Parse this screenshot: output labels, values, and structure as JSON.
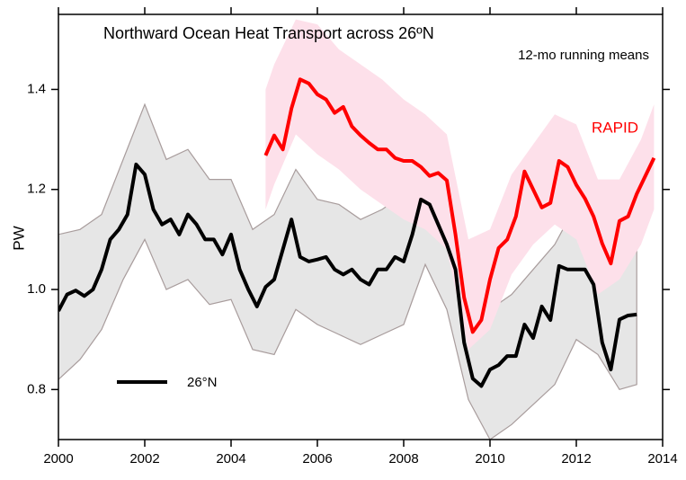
{
  "chart_data": {
    "type": "line",
    "title": "Northward Ocean Heat Transport across 26ºN",
    "subtitle": "12-mo running means",
    "y_label": "PW",
    "xlim": [
      2000,
      2014
    ],
    "xticks": [
      2000,
      2002,
      2004,
      2006,
      2008,
      2010,
      2012,
      2014
    ],
    "ylim": [
      0.7,
      1.55
    ],
    "yticks": [
      {
        "value": 0.8,
        "label": "0.8"
      },
      {
        "value": 1.0,
        "label": "1.0"
      },
      {
        "value": 1.2,
        "label": "1.2"
      },
      {
        "value": 1.4,
        "label": "1.4"
      }
    ],
    "series": [
      {
        "name": "26°N",
        "color": "#000000",
        "band_color": "#e6e6e6",
        "legend": true,
        "x": [
          2000.0,
          2000.2,
          2000.4,
          2000.6,
          2000.8,
          2001.0,
          2001.2,
          2001.4,
          2001.6,
          2001.8,
          2002.0,
          2002.2,
          2002.4,
          2002.6,
          2002.8,
          2003.0,
          2003.2,
          2003.4,
          2003.6,
          2003.8,
          2004.0,
          2004.2,
          2004.4,
          2004.6,
          2004.8,
          2005.0,
          2005.2,
          2005.4,
          2005.6,
          2005.8,
          2006.0,
          2006.2,
          2006.4,
          2006.6,
          2006.8,
          2007.0,
          2007.2,
          2007.4,
          2007.6,
          2007.8,
          2008.0,
          2008.2,
          2008.4,
          2008.6,
          2008.8,
          2009.0,
          2009.2,
          2009.4,
          2009.6,
          2009.8,
          2010.0,
          2010.2,
          2010.4,
          2010.6,
          2010.8,
          2011.0,
          2011.2,
          2011.4,
          2011.6,
          2011.8,
          2012.0,
          2012.2,
          2012.4,
          2012.6,
          2012.8,
          2013.0,
          2013.2,
          2013.4
        ],
        "values": [
          0.957,
          0.99,
          0.998,
          0.987,
          1.0,
          1.04,
          1.1,
          1.12,
          1.15,
          1.25,
          1.23,
          1.16,
          1.13,
          1.14,
          1.11,
          1.15,
          1.13,
          1.1,
          1.1,
          1.07,
          1.11,
          1.04,
          1.0,
          0.966,
          1.005,
          1.02,
          1.08,
          1.14,
          1.065,
          1.056,
          1.06,
          1.065,
          1.04,
          1.03,
          1.04,
          1.02,
          1.01,
          1.04,
          1.04,
          1.065,
          1.056,
          1.11,
          1.18,
          1.17,
          1.13,
          1.09,
          1.04,
          0.894,
          0.822,
          0.807,
          0.84,
          0.849,
          0.867,
          0.867,
          0.93,
          0.903,
          0.966,
          0.939,
          1.047,
          1.04,
          1.04,
          1.04,
          1.01,
          0.894,
          0.84,
          0.94,
          0.948,
          0.95
        ],
        "band_x": [
          2000,
          2000.5,
          2001,
          2001.5,
          2002,
          2002.5,
          2003,
          2003.5,
          2004,
          2004.5,
          2005,
          2005.5,
          2006,
          2006.5,
          2007,
          2007.5,
          2008,
          2008.5,
          2009,
          2009.5,
          2010,
          2010.5,
          2011,
          2011.5,
          2012,
          2012.5,
          2013,
          2013.4
        ],
        "band_upper": [
          1.11,
          1.12,
          1.15,
          1.26,
          1.37,
          1.26,
          1.28,
          1.22,
          1.22,
          1.12,
          1.15,
          1.24,
          1.18,
          1.17,
          1.14,
          1.16,
          1.19,
          1.29,
          1.22,
          1.08,
          0.96,
          0.99,
          1.04,
          1.09,
          1.17,
          1.14,
          1.06,
          1.09
        ],
        "band_lower": [
          0.82,
          0.86,
          0.92,
          1.02,
          1.1,
          1.0,
          1.02,
          0.97,
          0.98,
          0.88,
          0.87,
          0.96,
          0.93,
          0.91,
          0.89,
          0.91,
          0.93,
          1.05,
          0.96,
          0.78,
          0.7,
          0.73,
          0.77,
          0.81,
          0.9,
          0.87,
          0.8,
          0.81
        ]
      },
      {
        "name": "RAPID",
        "color": "#ff0000",
        "band_color": "#fde0ea",
        "legend": false,
        "x": [
          2004.8,
          2005.0,
          2005.2,
          2005.4,
          2005.6,
          2005.8,
          2006.0,
          2006.2,
          2006.4,
          2006.6,
          2006.8,
          2007.0,
          2007.2,
          2007.4,
          2007.6,
          2007.8,
          2008.0,
          2008.2,
          2008.4,
          2008.6,
          2008.8,
          2009.0,
          2009.2,
          2009.4,
          2009.6,
          2009.8,
          2010.0,
          2010.2,
          2010.4,
          2010.6,
          2010.8,
          2011.0,
          2011.2,
          2011.4,
          2011.6,
          2011.8,
          2012.0,
          2012.2,
          2012.4,
          2012.6,
          2012.8,
          2013.0,
          2013.2,
          2013.4,
          2013.6,
          2013.8
        ],
        "values": [
          1.268,
          1.308,
          1.28,
          1.362,
          1.42,
          1.412,
          1.39,
          1.38,
          1.353,
          1.365,
          1.326,
          1.308,
          1.293,
          1.28,
          1.28,
          1.263,
          1.257,
          1.257,
          1.245,
          1.227,
          1.233,
          1.218,
          1.11,
          0.984,
          0.915,
          0.939,
          1.02,
          1.083,
          1.1,
          1.146,
          1.236,
          1.2,
          1.164,
          1.173,
          1.257,
          1.245,
          1.209,
          1.182,
          1.146,
          1.092,
          1.052,
          1.137,
          1.146,
          1.191,
          1.227,
          1.263
        ],
        "band_x": [
          2004.8,
          2005.0,
          2005.5,
          2006,
          2006.5,
          2007,
          2007.5,
          2008,
          2008.5,
          2009,
          2009.5,
          2010,
          2010.5,
          2011,
          2011.5,
          2012,
          2012.5,
          2013,
          2013.5,
          2013.8
        ],
        "band_upper": [
          1.4,
          1.45,
          1.54,
          1.53,
          1.48,
          1.45,
          1.42,
          1.38,
          1.35,
          1.31,
          1.1,
          1.12,
          1.23,
          1.29,
          1.35,
          1.33,
          1.22,
          1.22,
          1.3,
          1.37
        ],
        "band_lower": [
          1.16,
          1.21,
          1.31,
          1.27,
          1.24,
          1.2,
          1.17,
          1.14,
          1.12,
          1.08,
          0.88,
          0.92,
          1.03,
          1.09,
          1.13,
          1.1,
          0.99,
          1.02,
          1.09,
          1.16
        ]
      }
    ]
  }
}
